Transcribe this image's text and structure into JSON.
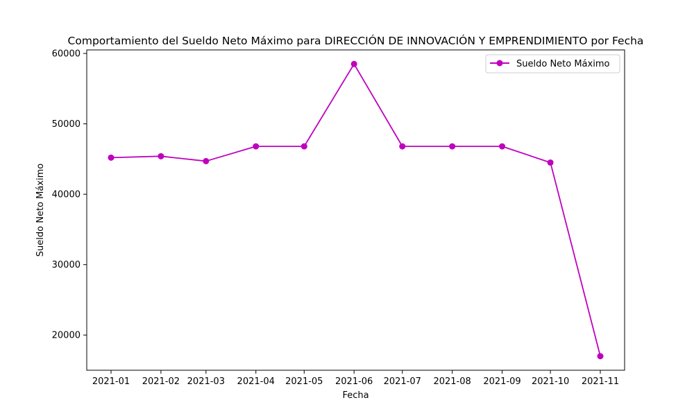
{
  "chart_data": {
    "type": "line",
    "title": "Comportamiento del Sueldo Neto Máximo para DIRECCIÓN DE INNOVACIÓN Y EMPRENDIMIENTO por Fecha",
    "xlabel": "Fecha",
    "ylabel": "Sueldo Neto Máximo",
    "categories": [
      "2021-01",
      "2021-02",
      "2021-03",
      "2021-04",
      "2021-05",
      "2021-06",
      "2021-07",
      "2021-08",
      "2021-09",
      "2021-10",
      "2021-11"
    ],
    "x_dates": [
      "2021-01-01",
      "2021-02-01",
      "2021-03-01",
      "2021-04-01",
      "2021-05-01",
      "2021-06-01",
      "2021-07-01",
      "2021-08-01",
      "2021-09-01",
      "2021-10-01",
      "2021-11-01"
    ],
    "series": [
      {
        "name": "Sueldo Neto Máximo",
        "color": "#bf00bf",
        "marker": "circle",
        "values": [
          45200,
          45400,
          44700,
          46800,
          46800,
          58500,
          46800,
          46800,
          46800,
          44500,
          17000
        ]
      }
    ],
    "yticks": [
      20000,
      30000,
      40000,
      50000,
      60000
    ],
    "ylim": [
      15000,
      60500
    ],
    "grid": false,
    "legend": "top-right"
  }
}
